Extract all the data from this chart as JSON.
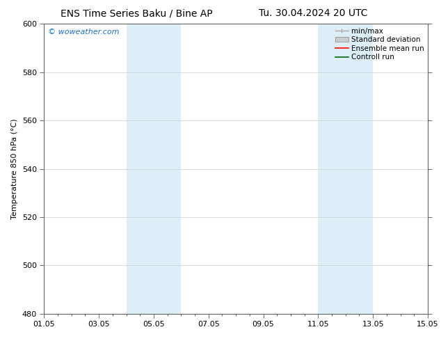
{
  "title_left": "ENS Time Series Baku / Bine AP",
  "title_right": "Tu. 30.04.2024 20 UTC",
  "ylabel": "Temperature 850 hPa (°C)",
  "ylim": [
    480,
    600
  ],
  "yticks": [
    480,
    500,
    520,
    540,
    560,
    580,
    600
  ],
  "xtick_labels": [
    "01.05",
    "03.05",
    "05.05",
    "07.05",
    "09.05",
    "11.05",
    "13.05",
    "15.05"
  ],
  "xtick_positions": [
    0,
    2,
    4,
    6,
    8,
    10,
    12,
    14
  ],
  "xlim": [
    0,
    14
  ],
  "background_color": "#ffffff",
  "plot_bg_color": "#ffffff",
  "shaded_bands": [
    {
      "x_start": 3.0,
      "x_end": 5.0,
      "color": "#ddeef8"
    },
    {
      "x_start": 10.0,
      "x_end": 12.0,
      "color": "#ddeef8"
    }
  ],
  "legend_items": [
    {
      "label": "min/max",
      "color": "#aaaaaa",
      "lw": 1.0,
      "style": "minmax"
    },
    {
      "label": "Standard deviation",
      "color": "#cccccc",
      "lw": 6,
      "style": "band"
    },
    {
      "label": "Ensemble mean run",
      "color": "#ff0000",
      "lw": 1.2,
      "style": "line"
    },
    {
      "label": "Controll run",
      "color": "#006400",
      "lw": 1.2,
      "style": "line"
    }
  ],
  "watermark_text": "© woweather.com",
  "watermark_color": "#1a6fc4",
  "title_fontsize": 10,
  "axis_label_fontsize": 8,
  "tick_fontsize": 8,
  "legend_fontsize": 7.5,
  "watermark_fontsize": 8,
  "grid_color": "#cccccc",
  "grid_lw": 0.5,
  "spine_color": "#555555",
  "tick_color": "#555555"
}
